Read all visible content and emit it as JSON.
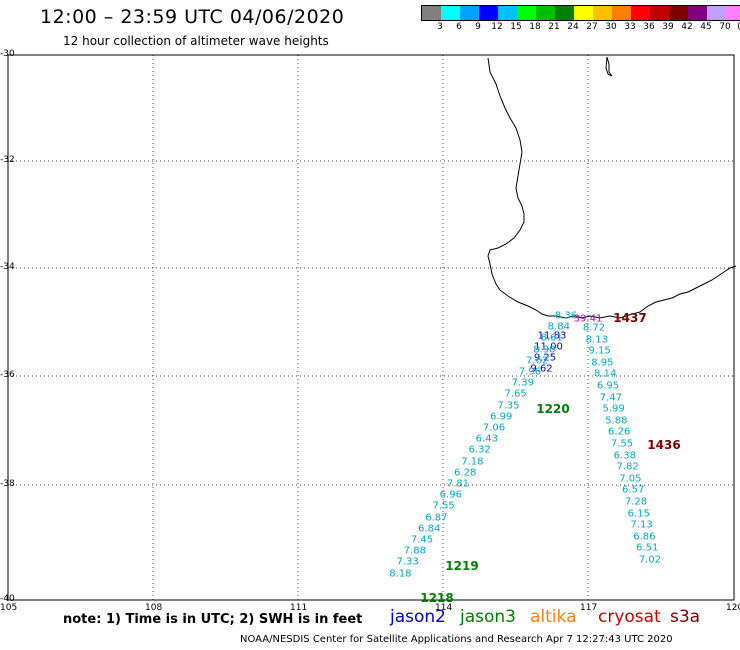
{
  "header": {
    "title": "12:00 – 23:59 UTC 04/06/2020",
    "subtitle": "12 hour collection of altimeter wave heights"
  },
  "scale": {
    "colors": [
      "#808080",
      "#00ffff",
      "#00a0ff",
      "#0000ff",
      "#00c0ff",
      "#00ff00",
      "#00c000",
      "#008000",
      "#ffff00",
      "#ffc000",
      "#ff8000",
      "#ff0000",
      "#c00000",
      "#800000",
      "#800080",
      "#c0a0ff",
      "#ff80ff",
      "#000000"
    ],
    "labels": [
      "3",
      "6",
      "9",
      "12",
      "15",
      "18",
      "21",
      "24",
      "27",
      "30",
      "33",
      "36",
      "39",
      "42",
      "45",
      "70",
      "(ft)"
    ]
  },
  "axes": {
    "lat_labels": [
      "-30",
      "-32",
      "-34",
      "-36",
      "-38",
      "-40"
    ],
    "lon_labels": [
      "105",
      "108",
      "111",
      "114",
      "117",
      "120"
    ]
  },
  "footer": {
    "note": "note:  1) Time is in UTC; 2) SWH is in feet",
    "satellites": [
      {
        "name": "jason2",
        "color": "#0000cc"
      },
      {
        "name": "jason3",
        "color": "#008000"
      },
      {
        "name": "altika",
        "color": "#ff8000"
      },
      {
        "name": "cryosat",
        "color": "#cc0000"
      },
      {
        "name": "s3a",
        "color": "#800000"
      }
    ],
    "credit": "NOAA/NESDIS Center for Satellite Applications and Research    Apr  7 12:27:43 UTC 2020"
  },
  "passes": [
    {
      "time": "1437",
      "time_color": "#800000",
      "color": "#c000c0",
      "values": [
        "39.41"
      ]
    },
    {
      "time": "1220",
      "time_color": "#008000",
      "color": "#0000cc",
      "values": [
        "11.83",
        "11.00",
        "9.25",
        "9.62"
      ]
    },
    {
      "time": "1220",
      "time_color": "#008000",
      "color": "#00aacc",
      "values": [
        "8.36",
        "8.84",
        "8.61",
        "8.90",
        "7.62",
        "7.96",
        "7.39",
        "7.65",
        "7.35",
        "6.99",
        "7.06",
        "6.43",
        "6.32",
        "7.18",
        "6.28",
        "7.81",
        "6.96",
        "7.55",
        "6.87",
        "6.84",
        "7.45",
        "7.88",
        "7.33",
        "8.18"
      ]
    },
    {
      "time": "1436",
      "time_color": "#800000",
      "color": "#00aacc",
      "values": [
        "8.72",
        "8.13",
        "9.15",
        "8.95",
        "8.14",
        "6.95",
        "7.47",
        "5.99",
        "5.88",
        "6.26",
        "7.55",
        "6.38",
        "7.82",
        "7.05",
        "6.57",
        "7.28",
        "6.15",
        "7.13",
        "6.86",
        "6.51",
        "7.02"
      ]
    }
  ],
  "time_labels": [
    "1437",
    "1220",
    "1436",
    "1219",
    "1218"
  ]
}
